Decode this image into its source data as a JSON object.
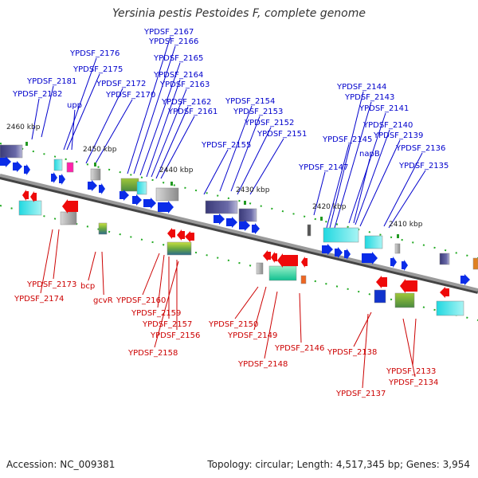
{
  "title": "Yersinia pestis Pestoides F, complete genome",
  "accession": "Accession: NC_009381",
  "summary": "Topology: circular; Length: 4,517,345 bp; Genes: 3,954",
  "colors": {
    "forward_label": "#0000cc",
    "reverse_label": "#cc0000",
    "backbone": "#8a8a8a"
  },
  "kbp_ticks": [
    "2460 kbp",
    "2450 kbp",
    "2440 kbp",
    "2430 kbp",
    "2420 kbp",
    "2410 kbp"
  ],
  "forward_genes": [
    "YPDSF_2182",
    "YPDSF_2181",
    "upp",
    "YPDSF_2176",
    "YPDSF_2175",
    "YPDSF_2172",
    "YPDSF_2170",
    "YPDSF_2167",
    "YPDSF_2166",
    "YPDSF_2165",
    "YPDSF_2164",
    "YPDSF_2163",
    "YPDSF_2162",
    "YPDSF_2161",
    "YPDSF_2155",
    "YPDSF_2154",
    "YPDSF_2153",
    "YPDSF_2152",
    "YPDSF_2151",
    "YPDSF_2147",
    "YPDSF_2145",
    "YPDSF_2144",
    "YPDSF_2143",
    "napB",
    "YPDSF_2141",
    "YPDSF_2140",
    "YPDSF_2139",
    "YPDSF_2136",
    "YPDSF_2135"
  ],
  "reverse_genes": [
    "YPDSF_2173",
    "YPDSF_2174",
    "bcp",
    "gcvR",
    "YPDSF_2160",
    "YPDSF_2159",
    "YPDSF_2157",
    "YPDSF_2156",
    "YPDSF_2158",
    "YPDSF_2150",
    "YPDSF_2149",
    "YPDSF_2148",
    "YPDSF_2146",
    "YPDSF_2138",
    "YPDSF_2137",
    "YPDSF_2134",
    "YPDSF_2133"
  ]
}
